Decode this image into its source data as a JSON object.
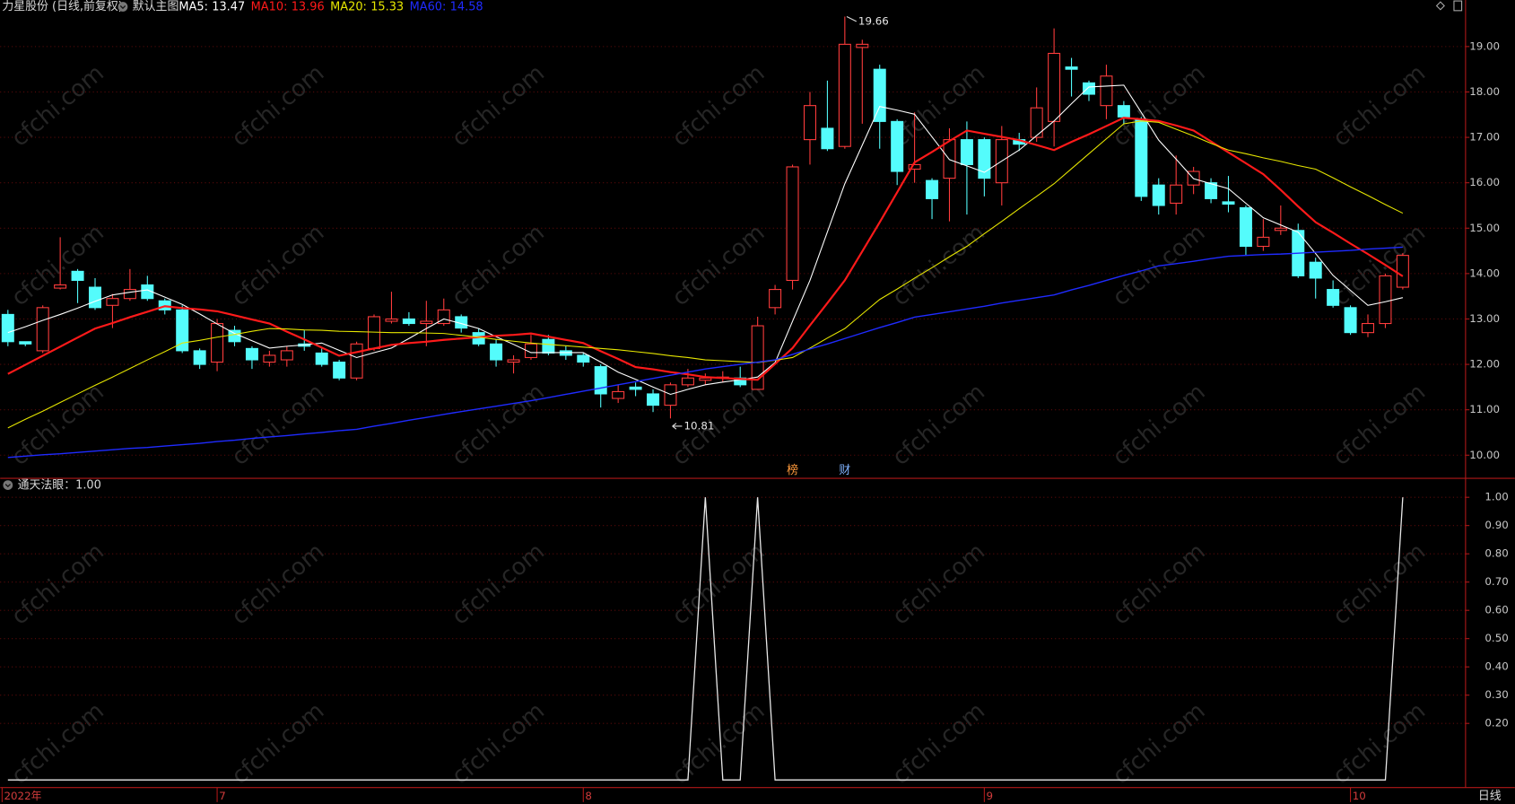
{
  "watermark": "cfchi.com",
  "period_label": "日线",
  "chart_data": [
    {
      "type": "candlestick",
      "title": "力星股份 (日线,前复权)",
      "subtitle": "默认主图",
      "categories": [
        "2022年",
        null,
        null,
        null,
        null,
        null,
        null,
        null,
        null,
        null,
        null,
        null,
        "7",
        null,
        null,
        null,
        null,
        null,
        null,
        null,
        null,
        null,
        null,
        null,
        null,
        null,
        null,
        null,
        null,
        null,
        null,
        null,
        null,
        "8",
        null,
        null,
        null,
        null,
        null,
        null,
        null,
        null,
        null,
        null,
        null,
        null,
        null,
        null,
        null,
        null,
        null,
        null,
        null,
        null,
        null,
        null,
        "9",
        null,
        null,
        null,
        null,
        null,
        null,
        null,
        null,
        null,
        null,
        null,
        null,
        null,
        null,
        null,
        null,
        null,
        null,
        null,
        null,
        "10",
        null,
        null,
        null
      ],
      "open": [
        13.1,
        12.5,
        12.3,
        13.68,
        14.05,
        13.7,
        13.3,
        13.45,
        13.75,
        13.4,
        13.2,
        12.3,
        12.05,
        12.75,
        12.35,
        12.05,
        12.1,
        12.45,
        12.25,
        12.05,
        11.7,
        12.35,
        12.95,
        13.0,
        12.9,
        12.9,
        13.05,
        12.7,
        12.45,
        12.05,
        12.15,
        12.55,
        12.3,
        12.2,
        11.95,
        11.25,
        11.5,
        11.35,
        11.1,
        11.55,
        11.65,
        11.72,
        11.7,
        11.45,
        13.25,
        13.85,
        16.95,
        17.2,
        16.8,
        18.98,
        18.5,
        17.35,
        16.3,
        16.05,
        16.1,
        16.95,
        16.95,
        16.0,
        16.95,
        17.0,
        17.35,
        18.55,
        18.2,
        17.7,
        17.7,
        17.4,
        15.95,
        15.55,
        15.95,
        16.0,
        15.58,
        15.45,
        14.6,
        14.95,
        14.95,
        14.25,
        13.65,
        13.25,
        12.7,
        12.9,
        13.7
      ],
      "high": [
        13.2,
        12.5,
        13.3,
        14.8,
        14.1,
        13.9,
        13.55,
        14.1,
        13.95,
        13.45,
        13.3,
        12.35,
        13.0,
        12.85,
        12.4,
        12.3,
        12.4,
        12.75,
        12.35,
        12.1,
        12.5,
        13.1,
        13.6,
        13.15,
        13.4,
        13.45,
        13.1,
        12.8,
        12.55,
        12.2,
        12.65,
        12.65,
        12.4,
        12.25,
        12.0,
        11.55,
        11.6,
        11.45,
        11.6,
        11.9,
        11.8,
        11.85,
        11.95,
        13.05,
        13.75,
        16.4,
        18.0,
        18.25,
        19.66,
        19.15,
        18.6,
        17.4,
        17.55,
        16.1,
        17.2,
        17.35,
        17.0,
        17.25,
        17.1,
        18.1,
        19.4,
        18.75,
        18.25,
        18.6,
        17.8,
        17.45,
        16.1,
        16.6,
        16.35,
        16.1,
        16.15,
        15.5,
        15.2,
        15.5,
        15.1,
        14.35,
        13.85,
        13.3,
        13.1,
        14.0,
        14.45
      ],
      "low": [
        12.4,
        12.4,
        12.25,
        13.65,
        13.35,
        13.2,
        12.8,
        13.4,
        13.4,
        13.1,
        12.25,
        11.9,
        11.85,
        12.4,
        11.9,
        11.95,
        11.95,
        12.3,
        11.95,
        11.65,
        11.65,
        12.3,
        12.9,
        12.85,
        12.4,
        12.85,
        12.7,
        12.4,
        11.95,
        11.8,
        12.1,
        12.2,
        12.1,
        11.95,
        11.05,
        11.15,
        11.3,
        10.95,
        10.81,
        11.5,
        11.55,
        11.6,
        11.5,
        11.45,
        13.1,
        13.65,
        16.4,
        16.7,
        16.75,
        17.3,
        16.75,
        15.95,
        16.0,
        15.2,
        15.15,
        15.3,
        15.7,
        15.5,
        16.7,
        16.9,
        16.8,
        17.9,
        17.8,
        17.4,
        17.3,
        15.6,
        15.3,
        15.3,
        15.75,
        15.55,
        15.35,
        14.4,
        14.5,
        14.85,
        13.9,
        13.45,
        13.25,
        12.65,
        12.6,
        12.8,
        13.65
      ],
      "close": [
        12.5,
        12.45,
        13.25,
        13.75,
        13.85,
        13.25,
        13.45,
        13.65,
        13.45,
        13.2,
        12.3,
        12.0,
        12.9,
        12.5,
        12.1,
        12.2,
        12.3,
        12.4,
        12.0,
        11.7,
        12.45,
        13.05,
        13.0,
        12.9,
        12.95,
        13.2,
        12.8,
        12.45,
        12.1,
        12.1,
        12.45,
        12.25,
        12.2,
        12.05,
        11.35,
        11.4,
        11.45,
        11.1,
        11.55,
        11.7,
        11.7,
        11.72,
        11.55,
        12.85,
        13.65,
        16.35,
        17.7,
        16.75,
        19.05,
        19.05,
        17.35,
        16.25,
        16.4,
        15.65,
        16.95,
        16.4,
        16.1,
        16.95,
        16.85,
        17.65,
        18.85,
        18.5,
        17.95,
        18.35,
        17.45,
        15.7,
        15.5,
        15.95,
        16.25,
        15.65,
        15.53,
        14.6,
        14.8,
        15.0,
        13.95,
        13.9,
        13.3,
        12.7,
        12.9,
        13.95,
        14.4
      ],
      "up_color": "#ff3c3c",
      "down_color": "#54fcfc",
      "event_markers": [
        null,
        null,
        null,
        null,
        null,
        null,
        null,
        null,
        null,
        null,
        null,
        null,
        null,
        null,
        null,
        null,
        null,
        null,
        null,
        null,
        null,
        null,
        null,
        null,
        null,
        null,
        null,
        null,
        null,
        null,
        null,
        null,
        null,
        null,
        null,
        null,
        null,
        null,
        null,
        null,
        null,
        null,
        null,
        null,
        null,
        "榜",
        null,
        null,
        "财",
        null,
        null,
        null,
        null,
        null,
        null,
        null,
        null,
        null,
        null,
        null,
        null,
        null,
        null,
        null,
        null,
        null,
        null,
        null,
        null,
        null,
        null,
        null,
        null,
        null,
        null,
        null,
        null,
        null,
        null,
        null,
        null
      ],
      "event_colors": [
        "#ff9a3c",
        "#7fb2ff"
      ],
      "max_label": 19.66,
      "min_label": 10.81,
      "series": [
        {
          "name": "MA5:",
          "latest": 13.47,
          "color": "#ffffff",
          "width": 1,
          "values": [
            12.7,
            12.83,
            12.97,
            13.1,
            13.24,
            13.39,
            13.53,
            13.59,
            13.64,
            13.48,
            13.32,
            13.11,
            12.89,
            12.68,
            12.52,
            12.36,
            12.4,
            12.43,
            12.47,
            12.31,
            12.15,
            12.26,
            12.36,
            12.57,
            12.79,
            13.0,
            12.9,
            12.79,
            12.61,
            12.44,
            12.26,
            12.26,
            12.26,
            12.26,
            12.05,
            11.83,
            11.67,
            11.5,
            11.34,
            11.45,
            11.55,
            11.61,
            11.66,
            11.72,
            12.04,
            12.95,
            13.85,
            14.92,
            15.98,
            16.83,
            17.68,
            17.6,
            17.51,
            17.01,
            16.51,
            16.37,
            16.23,
            16.48,
            16.72,
            17.04,
            17.36,
            17.74,
            18.11,
            18.13,
            18.15,
            17.55,
            16.94,
            16.52,
            16.09,
            15.98,
            15.87,
            15.55,
            15.23,
            15.07,
            14.91,
            14.44,
            13.96,
            13.63,
            13.3,
            13.38,
            13.47
          ]
        },
        {
          "name": "MA10:",
          "latest": 13.96,
          "color": "#ff1a1a",
          "width": 2,
          "values": [
            11.79,
            11.99,
            12.19,
            12.39,
            12.59,
            12.79,
            12.91,
            13.04,
            13.16,
            13.28,
            13.24,
            13.21,
            13.17,
            13.08,
            12.99,
            12.9,
            12.72,
            12.55,
            12.37,
            12.19,
            12.27,
            12.35,
            12.43,
            12.47,
            12.5,
            12.54,
            12.57,
            12.6,
            12.63,
            12.65,
            12.68,
            12.61,
            12.54,
            12.47,
            12.29,
            12.12,
            11.94,
            11.89,
            11.83,
            11.78,
            11.72,
            11.7,
            11.68,
            11.66,
            12.01,
            12.36,
            12.86,
            13.35,
            13.85,
            14.49,
            15.13,
            15.79,
            16.45,
            16.68,
            16.92,
            17.15,
            17.08,
            17.01,
            16.94,
            16.83,
            16.72,
            16.9,
            17.07,
            17.25,
            17.43,
            17.4,
            17.36,
            17.26,
            17.15,
            16.91,
            16.67,
            16.43,
            16.19,
            15.84,
            15.48,
            15.13,
            14.9,
            14.66,
            14.43,
            14.19,
            13.94
          ]
        },
        {
          "name": "MA20:",
          "latest": 15.33,
          "color": "#e6e600",
          "width": 1,
          "values": [
            10.6,
            10.79,
            10.97,
            11.16,
            11.35,
            11.54,
            11.72,
            11.91,
            12.1,
            12.28,
            12.47,
            12.53,
            12.6,
            12.66,
            12.73,
            12.79,
            12.78,
            12.76,
            12.75,
            12.73,
            12.72,
            12.71,
            12.7,
            12.7,
            12.69,
            12.68,
            12.64,
            12.6,
            12.55,
            12.51,
            12.47,
            12.44,
            12.41,
            12.38,
            12.35,
            12.32,
            12.28,
            12.24,
            12.19,
            12.15,
            12.1,
            12.08,
            12.06,
            12.04,
            12.09,
            12.15,
            12.36,
            12.58,
            12.79,
            13.11,
            13.43,
            13.66,
            13.9,
            14.13,
            14.37,
            14.6,
            14.88,
            15.15,
            15.43,
            15.7,
            15.98,
            16.31,
            16.64,
            16.97,
            17.3,
            17.36,
            17.33,
            17.18,
            17.03,
            16.87,
            16.72,
            16.64,
            16.55,
            16.47,
            16.38,
            16.3,
            16.11,
            15.91,
            15.72,
            15.52,
            15.33
          ]
        },
        {
          "name": "MA60:",
          "latest": 14.58,
          "color": "#1f2bff",
          "width": 1.3,
          "values": [
            9.95,
            9.98,
            10.01,
            10.03,
            10.06,
            10.09,
            10.12,
            10.15,
            10.17,
            10.2,
            10.23,
            10.26,
            10.3,
            10.33,
            10.37,
            10.4,
            10.43,
            10.47,
            10.5,
            10.54,
            10.57,
            10.64,
            10.7,
            10.77,
            10.83,
            10.9,
            10.96,
            11.02,
            11.08,
            11.14,
            11.2,
            11.27,
            11.34,
            11.41,
            11.48,
            11.55,
            11.62,
            11.69,
            11.76,
            11.83,
            11.9,
            11.95,
            12.0,
            12.05,
            12.1,
            12.22,
            12.34,
            12.45,
            12.57,
            12.69,
            12.81,
            12.92,
            13.04,
            13.1,
            13.16,
            13.22,
            13.28,
            13.35,
            13.41,
            13.47,
            13.53,
            13.64,
            13.74,
            13.85,
            13.96,
            14.06,
            14.17,
            14.22,
            14.27,
            14.33,
            14.38,
            14.4,
            14.42,
            14.43,
            14.45,
            14.47,
            14.49,
            14.51,
            14.54,
            14.56,
            14.58
          ]
        }
      ],
      "ylim": [
        9.49,
        19.77
      ],
      "yticks": [
        {
          "value": 10,
          "label": "10.00"
        },
        {
          "value": 11,
          "label": "11.00"
        },
        {
          "value": 12,
          "label": "12.00"
        },
        {
          "value": 13,
          "label": "13.00"
        },
        {
          "value": 14,
          "label": "14.00"
        },
        {
          "value": 15,
          "label": "15.00"
        },
        {
          "value": 16,
          "label": "16.00"
        },
        {
          "value": 17,
          "label": "17.00"
        },
        {
          "value": 18,
          "label": "18.00"
        },
        {
          "value": 19,
          "label": "19.00"
        }
      ],
      "grid": true
    },
    {
      "type": "line",
      "title": "通天法眼：",
      "latest": {
        "value": 1,
        "label": "1.00"
      },
      "color": "#e8e8e8",
      "values": [
        0,
        0,
        0,
        0,
        0,
        0,
        0,
        0,
        0,
        0,
        0,
        0,
        0,
        0,
        0,
        0,
        0,
        0,
        0,
        0,
        0,
        0,
        0,
        0,
        0,
        0,
        0,
        0,
        0,
        0,
        0,
        0,
        0,
        0,
        0,
        0,
        0,
        0,
        0,
        0,
        1,
        0,
        0,
        1,
        0,
        0,
        0,
        0,
        0,
        0,
        0,
        0,
        0,
        0,
        0,
        0,
        0,
        0,
        0,
        0,
        0,
        0,
        0,
        0,
        0,
        0,
        0,
        0,
        0,
        0,
        0,
        0,
        0,
        0,
        0,
        0,
        0,
        0,
        0,
        0,
        1
      ],
      "ylim": [
        -0.027,
        1.067
      ],
      "yticks": [
        {
          "value": 0.2,
          "label": "0.20"
        },
        {
          "value": 0.3,
          "label": "0.30"
        },
        {
          "value": 0.4,
          "label": "0.40"
        },
        {
          "value": 0.5,
          "label": "0.50"
        },
        {
          "value": 0.6,
          "label": "0.60"
        },
        {
          "value": 0.7,
          "label": "0.70"
        },
        {
          "value": 0.8,
          "label": "0.80"
        },
        {
          "value": 0.9,
          "label": "0.90"
        },
        {
          "value": 1,
          "label": "1.00"
        }
      ],
      "grid": true
    }
  ]
}
